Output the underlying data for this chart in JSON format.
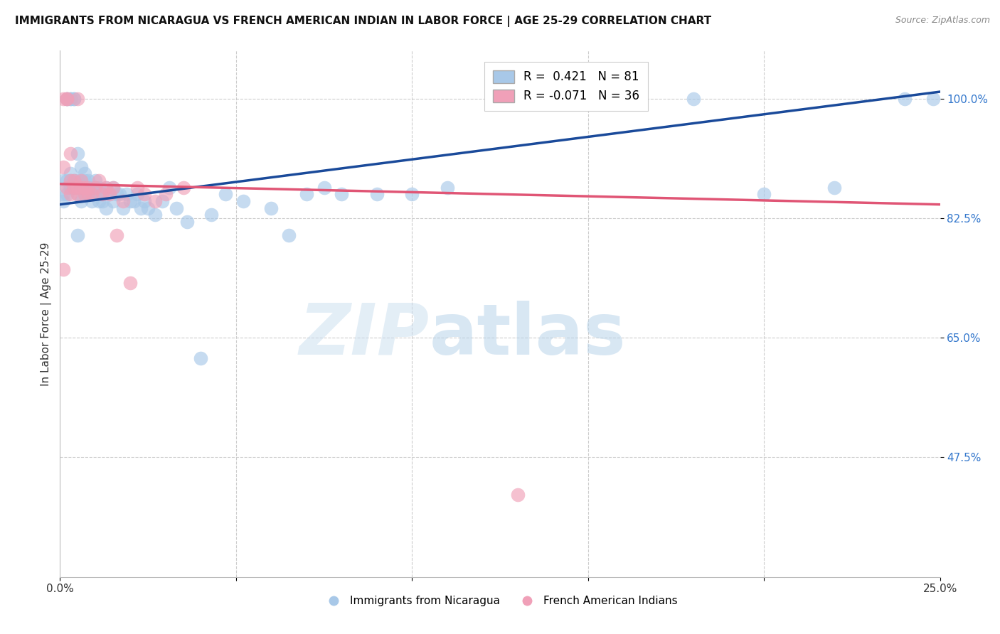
{
  "title": "IMMIGRANTS FROM NICARAGUA VS FRENCH AMERICAN INDIAN IN LABOR FORCE | AGE 25-29 CORRELATION CHART",
  "source": "Source: ZipAtlas.com",
  "ylabel": "In Labor Force | Age 25-29",
  "ytick_values": [
    1.0,
    0.825,
    0.65,
    0.475
  ],
  "xlim": [
    0.0,
    0.25
  ],
  "ylim": [
    0.3,
    1.07
  ],
  "blue_R": 0.421,
  "blue_N": 81,
  "pink_R": -0.071,
  "pink_N": 36,
  "blue_color": "#a8c8e8",
  "pink_color": "#f0a0b8",
  "blue_line_color": "#1a4a9a",
  "pink_line_color": "#e05575",
  "legend_blue_label": "Immigrants from Nicaragua",
  "legend_pink_label": "French American Indians",
  "blue_line_x": [
    0.0,
    0.25
  ],
  "blue_line_y": [
    0.845,
    1.01
  ],
  "pink_line_x": [
    0.0,
    0.25
  ],
  "pink_line_y": [
    0.875,
    0.845
  ],
  "blue_scatter_x": [
    0.001,
    0.001,
    0.001,
    0.002,
    0.002,
    0.002,
    0.002,
    0.003,
    0.003,
    0.003,
    0.003,
    0.003,
    0.004,
    0.004,
    0.004,
    0.004,
    0.005,
    0.005,
    0.005,
    0.005,
    0.006,
    0.006,
    0.006,
    0.006,
    0.007,
    0.007,
    0.007,
    0.007,
    0.008,
    0.008,
    0.008,
    0.009,
    0.009,
    0.01,
    0.01,
    0.01,
    0.011,
    0.011,
    0.012,
    0.012,
    0.013,
    0.013,
    0.014,
    0.015,
    0.015,
    0.016,
    0.017,
    0.018,
    0.019,
    0.02,
    0.021,
    0.022,
    0.023,
    0.024,
    0.025,
    0.027,
    0.029,
    0.031,
    0.033,
    0.036,
    0.04,
    0.043,
    0.047,
    0.052,
    0.06,
    0.065,
    0.07,
    0.075,
    0.08,
    0.09,
    0.1,
    0.11,
    0.125,
    0.14,
    0.16,
    0.18,
    0.2,
    0.22,
    0.24,
    0.248,
    0.005
  ],
  "blue_scatter_y": [
    0.88,
    0.86,
    0.85,
    1.0,
    1.0,
    0.86,
    0.88,
    1.0,
    1.0,
    0.87,
    0.88,
    0.89,
    1.0,
    1.0,
    0.87,
    0.88,
    0.92,
    0.87,
    0.86,
    0.88,
    0.87,
    0.88,
    0.85,
    0.9,
    0.88,
    0.87,
    0.86,
    0.89,
    0.86,
    0.87,
    0.88,
    0.85,
    0.87,
    0.86,
    0.87,
    0.88,
    0.85,
    0.87,
    0.86,
    0.85,
    0.87,
    0.84,
    0.86,
    0.85,
    0.87,
    0.86,
    0.86,
    0.84,
    0.86,
    0.85,
    0.85,
    0.86,
    0.84,
    0.85,
    0.84,
    0.83,
    0.85,
    0.87,
    0.84,
    0.82,
    0.62,
    0.83,
    0.86,
    0.85,
    0.84,
    0.8,
    0.86,
    0.87,
    0.86,
    0.86,
    0.86,
    0.87,
    1.0,
    1.0,
    1.0,
    1.0,
    0.86,
    0.87,
    1.0,
    1.0,
    0.8
  ],
  "pink_scatter_x": [
    0.001,
    0.001,
    0.002,
    0.002,
    0.002,
    0.003,
    0.003,
    0.003,
    0.004,
    0.004,
    0.005,
    0.005,
    0.005,
    0.006,
    0.006,
    0.007,
    0.007,
    0.008,
    0.008,
    0.009,
    0.01,
    0.011,
    0.012,
    0.013,
    0.014,
    0.015,
    0.016,
    0.018,
    0.02,
    0.022,
    0.024,
    0.027,
    0.03,
    0.035,
    0.13,
    0.001
  ],
  "pink_scatter_y": [
    1.0,
    0.9,
    1.0,
    0.87,
    1.0,
    0.86,
    0.88,
    0.92,
    0.87,
    0.88,
    0.87,
    1.0,
    0.86,
    0.87,
    0.88,
    0.86,
    0.87,
    0.86,
    0.87,
    0.86,
    0.87,
    0.88,
    0.86,
    0.87,
    0.86,
    0.87,
    0.8,
    0.85,
    0.73,
    0.87,
    0.86,
    0.85,
    0.86,
    0.87,
    0.42,
    0.75
  ]
}
